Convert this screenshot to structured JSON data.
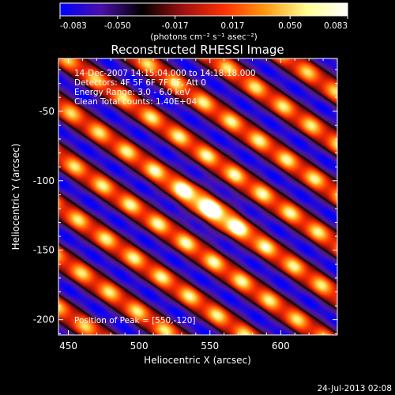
{
  "chart_data": {
    "type": "heatmap",
    "title": "Reconstructed RHESSI Image",
    "xlabel": "Heliocentric X (arcsec)",
    "ylabel": "Heliocentric Y (arcsec)",
    "xlim": [
      443,
      640
    ],
    "ylim": [
      -211,
      -12
    ],
    "x_ticks": [
      450,
      500,
      550,
      600
    ],
    "y_ticks": [
      -50,
      -100,
      -150,
      -200
    ],
    "colorbar": {
      "vmin": -0.083,
      "vmax": 0.083,
      "ticks": [
        "-0.083",
        "-0.050",
        "-0.017",
        "0.017",
        "0.050",
        "0.083"
      ],
      "unit_label": "(photons cm⁻² s⁻¹ asec⁻²)",
      "colors": [
        "#0000ff",
        "#4b0fa8",
        "#000000",
        "#a01010",
        "#ff3000",
        "#ff9a10",
        "#ffff90",
        "#ffffff"
      ]
    },
    "annotations": [
      "14-Dec-2007 14:15:04.000 to 14:18:18.000",
      "Detectors: 4F 5F 6F 7F 8F, Att 0",
      "Energy Range: 3.0 - 6.0 keV",
      "Clean     Total counts: 1.40E+04"
    ],
    "peak_label": "Position of Peak = [550,-120]",
    "peak": [
      550,
      -120
    ],
    "pattern": {
      "description_of_stripes": "diagonal fringes",
      "stripe_direction_deg": 55,
      "stripe_period_arcsec": 30
    }
  },
  "footer": {
    "timestamp": "24-Jul-2013 02:08"
  }
}
